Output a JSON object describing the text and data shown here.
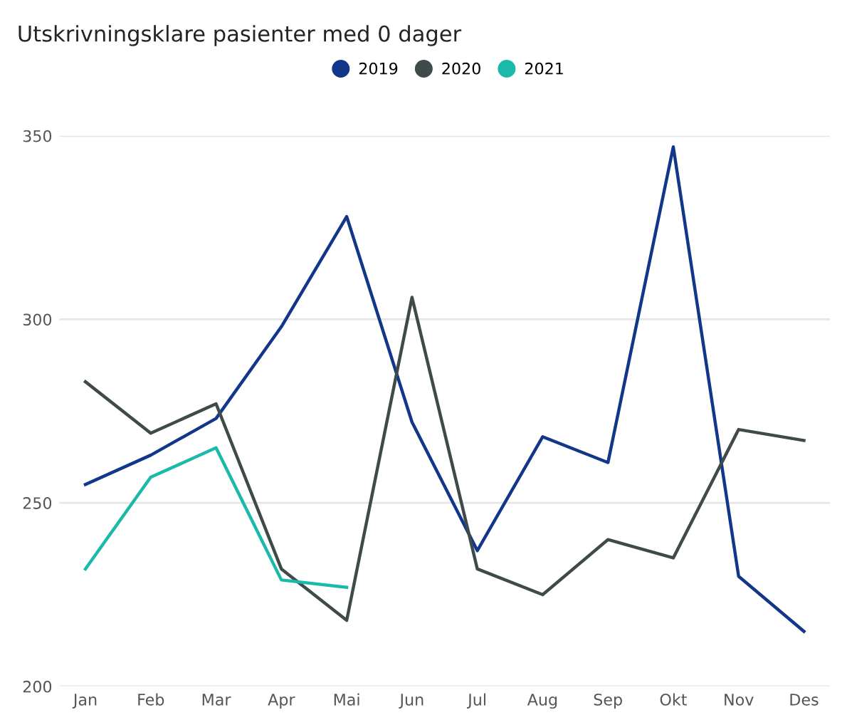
{
  "chart_data": {
    "type": "line",
    "title": "Utskrivningsklare pasienter med 0 dager",
    "categories": [
      "Jan",
      "Feb",
      "Mar",
      "Apr",
      "Mai",
      "Jun",
      "Jul",
      "Aug",
      "Sep",
      "Okt",
      "Nov",
      "Des"
    ],
    "series": [
      {
        "name": "2019",
        "color": "#12368a",
        "values": [
          255,
          263,
          273,
          298,
          328,
          272,
          237,
          268,
          261,
          347,
          230,
          215
        ]
      },
      {
        "name": "2020",
        "color": "#3f4a4a",
        "values": [
          283,
          269,
          277,
          232,
          218,
          306,
          232,
          225,
          240,
          235,
          270,
          267
        ]
      },
      {
        "name": "2021",
        "color": "#1ab9a9",
        "values": [
          232,
          257,
          265,
          229,
          227,
          null,
          null,
          null,
          null,
          null,
          null,
          null
        ]
      }
    ],
    "ylim": [
      200,
      350
    ],
    "yticks": [
      200,
      250,
      300,
      350
    ],
    "grid": "y",
    "legend": "top",
    "marker": "none",
    "line_style": "solid"
  }
}
